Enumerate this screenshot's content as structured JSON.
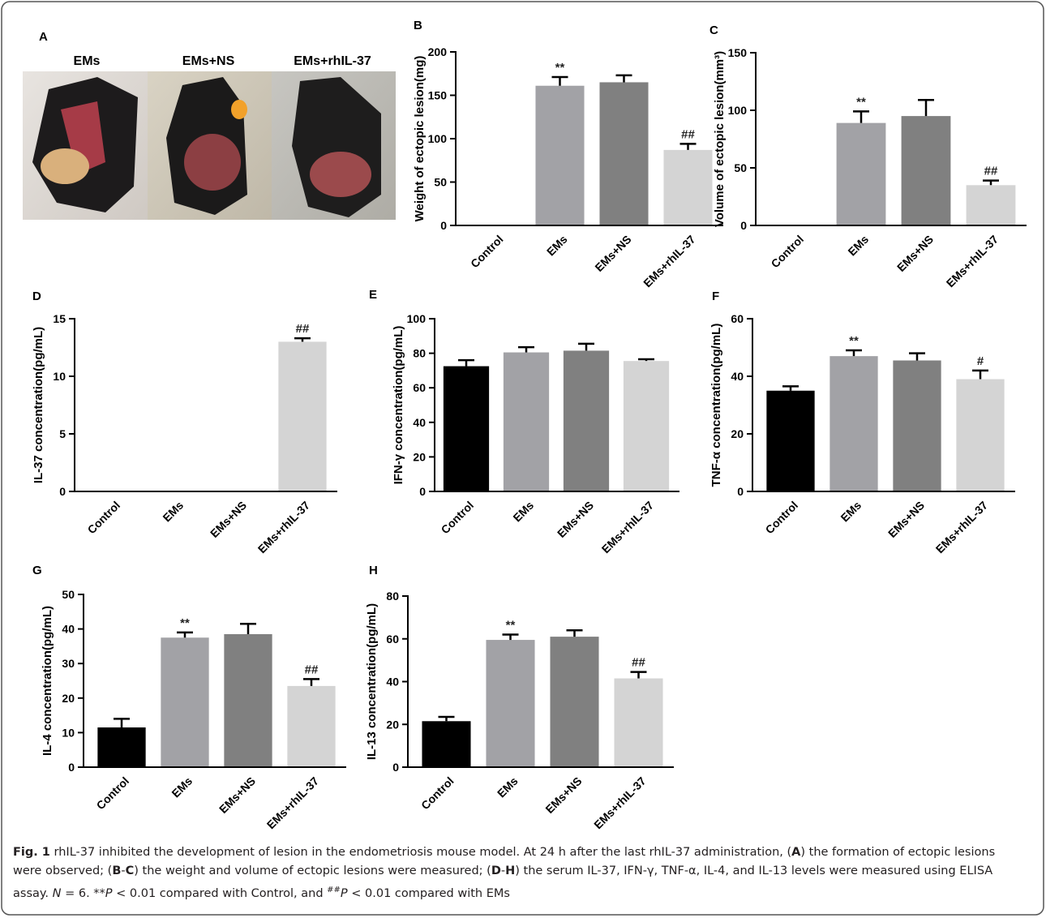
{
  "panel_a": {
    "letter": "A",
    "labels": [
      "EMs",
      "EMs+NS",
      "EMs+rhIL-37"
    ]
  },
  "chart_data": [
    {
      "type": "bar",
      "panel": "B",
      "ylabel": "Weight of ectopic lesion(mg)",
      "categories": [
        "Control",
        "EMs",
        "EMs+NS",
        "EMs+rhIL-37"
      ],
      "values": [
        0,
        161,
        165,
        87
      ],
      "errors": [
        null,
        10,
        8,
        7
      ],
      "annotations": [
        null,
        "**",
        null,
        "##"
      ],
      "colors": [
        "#000000",
        "#a2a2a6",
        "#808080",
        "#d4d4d4"
      ],
      "ylim": [
        0,
        200
      ],
      "yticks": [
        0,
        50,
        100,
        150,
        200
      ]
    },
    {
      "type": "bar",
      "panel": "C",
      "ylabel": "Volume of ectopic lesion(mm³)",
      "categories": [
        "Control",
        "EMs",
        "EMs+NS",
        "EMs+rhIL-37"
      ],
      "values": [
        0,
        89,
        95,
        35
      ],
      "errors": [
        null,
        10,
        14,
        4
      ],
      "annotations": [
        null,
        "**",
        null,
        "##"
      ],
      "colors": [
        "#000000",
        "#a2a2a6",
        "#808080",
        "#d4d4d4"
      ],
      "ylim": [
        0,
        150
      ],
      "yticks": [
        0,
        50,
        100,
        150
      ]
    },
    {
      "type": "bar",
      "panel": "D",
      "ylabel": "IL-37 concentration(pg/mL)",
      "categories": [
        "Control",
        "EMs",
        "EMs+NS",
        "EMs+rhIL-37"
      ],
      "values": [
        0,
        0,
        0,
        13
      ],
      "errors": [
        null,
        null,
        null,
        0.3
      ],
      "annotations": [
        null,
        null,
        null,
        "##"
      ],
      "colors": [
        "#000000",
        "#a2a2a6",
        "#808080",
        "#d4d4d4"
      ],
      "ylim": [
        0,
        15
      ],
      "yticks": [
        0,
        5,
        10,
        15
      ]
    },
    {
      "type": "bar",
      "panel": "E",
      "ylabel": "IFN-γ concentration(pg/mL)",
      "categories": [
        "Control",
        "EMs",
        "EMs+NS",
        "EMs+rhIL-37"
      ],
      "values": [
        72.5,
        80.5,
        81.5,
        75.5
      ],
      "errors": [
        3.5,
        3,
        4,
        1
      ],
      "annotations": [
        null,
        null,
        null,
        null
      ],
      "colors": [
        "#000000",
        "#a2a2a6",
        "#808080",
        "#d4d4d4"
      ],
      "ylim": [
        0,
        100
      ],
      "yticks": [
        0,
        20,
        40,
        60,
        80,
        100
      ]
    },
    {
      "type": "bar",
      "panel": "F",
      "ylabel": "TNF-α concentration(pg/mL)",
      "categories": [
        "Control",
        "EMs",
        "EMs+NS",
        "EMs+rhIL-37"
      ],
      "values": [
        35,
        47,
        45.5,
        39
      ],
      "errors": [
        1.5,
        2,
        2.5,
        3
      ],
      "annotations": [
        null,
        "**",
        null,
        "#"
      ],
      "colors": [
        "#000000",
        "#a2a2a6",
        "#808080",
        "#d4d4d4"
      ],
      "ylim": [
        0,
        60
      ],
      "yticks": [
        0,
        20,
        40,
        60
      ]
    },
    {
      "type": "bar",
      "panel": "G",
      "ylabel": "IL-4 concentration(pg/mL)",
      "categories": [
        "Control",
        "EMs",
        "EMs+NS",
        "EMs+rhIL-37"
      ],
      "values": [
        11.5,
        37.5,
        38.5,
        23.5
      ],
      "errors": [
        2.5,
        1.5,
        3,
        2
      ],
      "annotations": [
        null,
        "**",
        null,
        "##"
      ],
      "colors": [
        "#000000",
        "#a2a2a6",
        "#808080",
        "#d4d4d4"
      ],
      "ylim": [
        0,
        50
      ],
      "yticks": [
        0,
        10,
        20,
        30,
        40,
        50
      ]
    },
    {
      "type": "bar",
      "panel": "H",
      "ylabel": "IL-13 concentration(pg/mL)",
      "categories": [
        "Control",
        "EMs",
        "EMs+NS",
        "EMs+rhIL-37"
      ],
      "values": [
        21.5,
        59.5,
        61,
        41.5
      ],
      "errors": [
        2,
        2.5,
        3,
        3
      ],
      "annotations": [
        null,
        "**",
        null,
        "##"
      ],
      "colors": [
        "#000000",
        "#a2a2a6",
        "#808080",
        "#d4d4d4"
      ],
      "ylim": [
        0,
        80
      ],
      "yticks": [
        0,
        20,
        40,
        60,
        80
      ]
    }
  ],
  "caption": [
    {
      "text": "Fig. 1",
      "style": "b"
    },
    {
      "text": " rhIL-37 inhibited the development of lesion in the endometriosis mouse model. At 24 h after the last rhIL-37 administration, ("
    },
    {
      "text": "A",
      "style": "b"
    },
    {
      "text": ") the formation of ectopic lesions were observed; ("
    },
    {
      "text": "B",
      "style": "b"
    },
    {
      "text": "-"
    },
    {
      "text": "C",
      "style": "b"
    },
    {
      "text": ") the weight and volume of ectopic lesions were measured; ("
    },
    {
      "text": "D",
      "style": "b"
    },
    {
      "text": "-"
    },
    {
      "text": "H",
      "style": "b"
    },
    {
      "text": ") the serum IL-37, IFN-γ, TNF-α, IL-4, and IL-13 levels were measured using ELISA assay. "
    },
    {
      "text": "N",
      "style": "i"
    },
    {
      "text": " = 6. **"
    },
    {
      "text": "P",
      "style": "i"
    },
    {
      "text": " < 0.01 compared with Control, and "
    },
    {
      "text": "##",
      "style": "sup"
    },
    {
      "text": "P",
      "style": "i"
    },
    {
      "text": " < 0.01 compared with EMs"
    }
  ]
}
